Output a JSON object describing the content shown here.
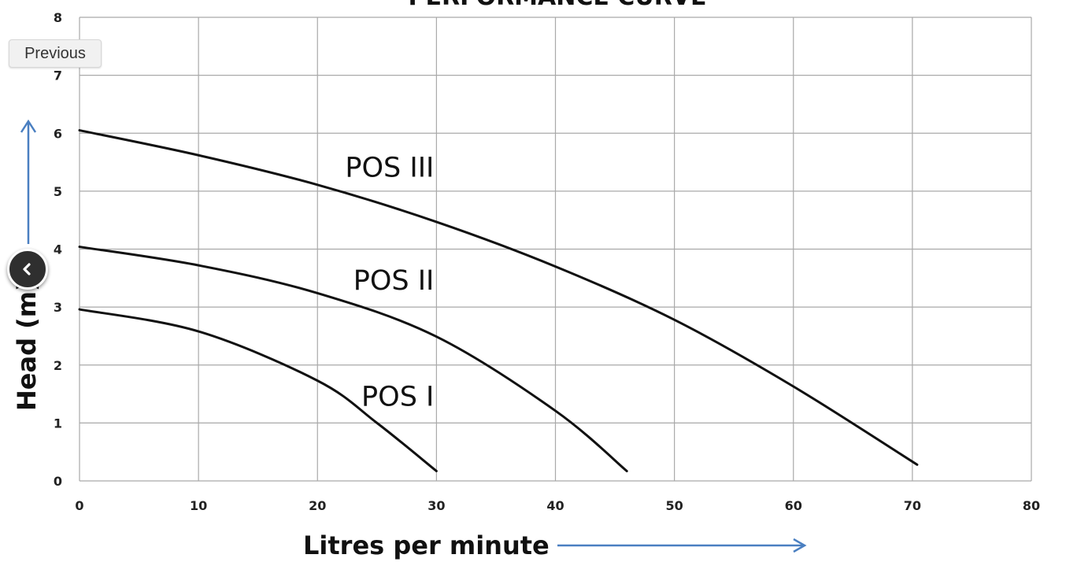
{
  "chart_data": {
    "type": "line",
    "title": "PERFORMANCE CURVE",
    "xlabel": "Litres per minute",
    "ylabel": "Head (m)",
    "xlim": [
      0,
      80
    ],
    "ylim": [
      0,
      8
    ],
    "xticks": [
      0,
      10,
      20,
      30,
      40,
      50,
      60,
      70,
      80
    ],
    "yticks": [
      0,
      1,
      2,
      3,
      4,
      5,
      6,
      7,
      8
    ],
    "grid": true,
    "series": [
      {
        "name": "POS III",
        "x": [
          0,
          10,
          20,
          30,
          40,
          50,
          60,
          70.4
        ],
        "y": [
          6.05,
          5.62,
          5.11,
          4.47,
          3.7,
          2.78,
          1.63,
          0.28
        ]
      },
      {
        "name": "POS II",
        "x": [
          0,
          10,
          20,
          30,
          40,
          46
        ],
        "y": [
          4.04,
          3.72,
          3.24,
          2.49,
          1.21,
          0.17
        ]
      },
      {
        "name": "POS I",
        "x": [
          0,
          10,
          20,
          25,
          30
        ],
        "y": [
          2.96,
          2.58,
          1.73,
          1.0,
          0.17
        ]
      }
    ]
  },
  "nav": {
    "previous_label": "Previous",
    "back_icon": "chevron-left-icon"
  }
}
